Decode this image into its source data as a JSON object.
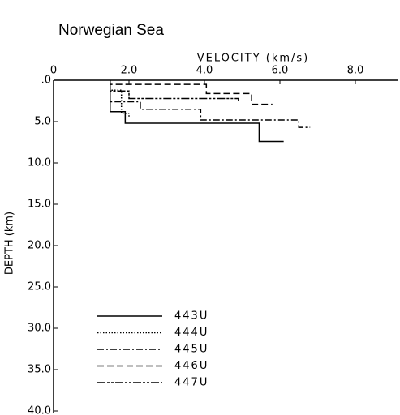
{
  "chart_data": {
    "type": "line",
    "title": "Norwegian Sea",
    "x_label": "VELOCITY (km/s)",
    "y_label": "DEPTH (km)",
    "xlim": [
      0,
      9.0
    ],
    "ylim": [
      0,
      40.0
    ],
    "y_inverted": true,
    "x_axis_position": "top",
    "xticks": [
      0,
      {
        "value": 2,
        "label": "2.0"
      },
      {
        "value": 4,
        "label": "4.0"
      },
      {
        "value": 6,
        "label": "6.0"
      },
      {
        "value": 8,
        "label": "8.0"
      }
    ],
    "yticks": [
      {
        "value": 0,
        "label": ".0"
      },
      {
        "value": 5,
        "label": "5.0"
      },
      {
        "value": 10,
        "label": "10.0"
      },
      {
        "value": 15,
        "label": "15.0"
      },
      {
        "value": 20,
        "label": "20.0"
      },
      {
        "value": 25,
        "label": "25.0"
      },
      {
        "value": 30,
        "label": "30.0"
      },
      {
        "value": 35,
        "label": "35.0"
      },
      {
        "value": 40,
        "label": "40.0"
      }
    ],
    "series": [
      {
        "name": "443U",
        "color": "#000000",
        "linestyle": "solid",
        "x": [
          1.5,
          1.5,
          1.9,
          1.9,
          5.45,
          5.45,
          6.1
        ],
        "values": [
          0,
          3.8,
          3.8,
          5.2,
          5.2,
          7.4,
          7.4
        ]
      },
      {
        "name": "444U",
        "color": "#000000",
        "linestyle": "dotted",
        "x": [
          1.5,
          1.5,
          1.8,
          1.8,
          2.0,
          2.0
        ],
        "values": [
          0,
          1.2,
          1.2,
          4.0,
          4.0,
          4.6
        ]
      },
      {
        "name": "445U",
        "color": "#000000",
        "linestyle": "dashdot",
        "x": [
          1.5,
          1.5,
          2.3,
          2.3,
          3.9,
          3.9,
          6.5,
          6.5,
          6.8
        ],
        "values": [
          0,
          2.6,
          2.6,
          3.5,
          3.5,
          4.8,
          4.8,
          5.7,
          5.7
        ]
      },
      {
        "name": "446U",
        "color": "#000000",
        "linestyle": "dashed",
        "x": [
          1.5,
          1.5,
          4.05,
          4.05,
          5.25,
          5.25,
          5.8
        ],
        "values": [
          0,
          0.5,
          0.5,
          1.6,
          1.6,
          2.9,
          2.9
        ]
      },
      {
        "name": "447U",
        "color": "#000000",
        "linestyle": "longdash",
        "x": [
          1.5,
          1.5,
          2.0,
          2.0,
          4.9,
          4.9
        ],
        "values": [
          0,
          1.3,
          1.3,
          2.2,
          2.2,
          2.5
        ]
      }
    ]
  }
}
